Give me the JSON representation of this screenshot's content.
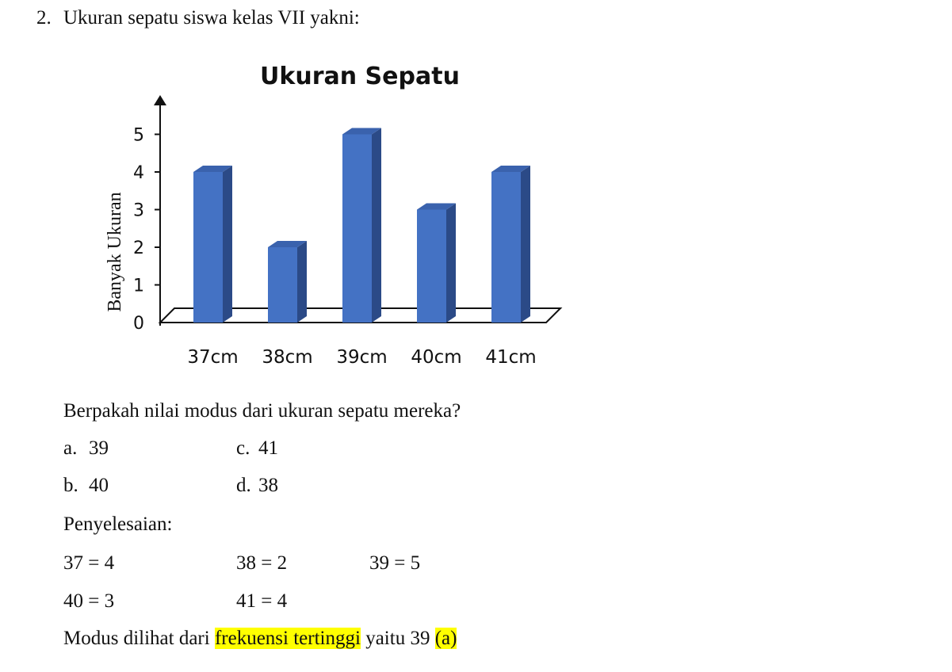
{
  "question": {
    "number": "2.",
    "text": "Ukuran sepatu siswa kelas VII yakni:",
    "prompt": "Berpakah nilai modus dari ukuran sepatu mereka?"
  },
  "options": {
    "a": {
      "letter": "a.",
      "value": "39"
    },
    "b": {
      "letter": "b.",
      "value": "40"
    },
    "c": {
      "letter": "c.",
      "value": "41"
    },
    "d": {
      "letter": "d.",
      "value": "38"
    }
  },
  "solution": {
    "heading": "Penyelesaian:",
    "items": [
      "37 = 4",
      "38 = 2",
      "39 = 5",
      "40 = 3",
      "41 = 4"
    ],
    "conclusion_prefix": "Modus dilihat dari ",
    "conclusion_highlight": "frekuensi tertinggi",
    "conclusion_mid": " yaitu 39 ",
    "conclusion_answer": "(a)",
    "highlight_color": "#ffff00"
  },
  "chart_data": {
    "type": "bar",
    "title": "Ukuran Sepatu",
    "xlabel": "",
    "ylabel": "Banyak Ukuran",
    "categories": [
      "37cm",
      "38cm",
      "39cm",
      "40cm",
      "41cm"
    ],
    "values": [
      4,
      2,
      5,
      3,
      4
    ],
    "yticks": [
      "0",
      "1",
      "2",
      "3",
      "4",
      "5"
    ],
    "ylim": [
      0,
      5
    ],
    "grid": false,
    "style": "3d",
    "bar_color": "#4472c4",
    "bar_side_color": "#2b4a87",
    "bar_top_color": "#3a62ad"
  }
}
